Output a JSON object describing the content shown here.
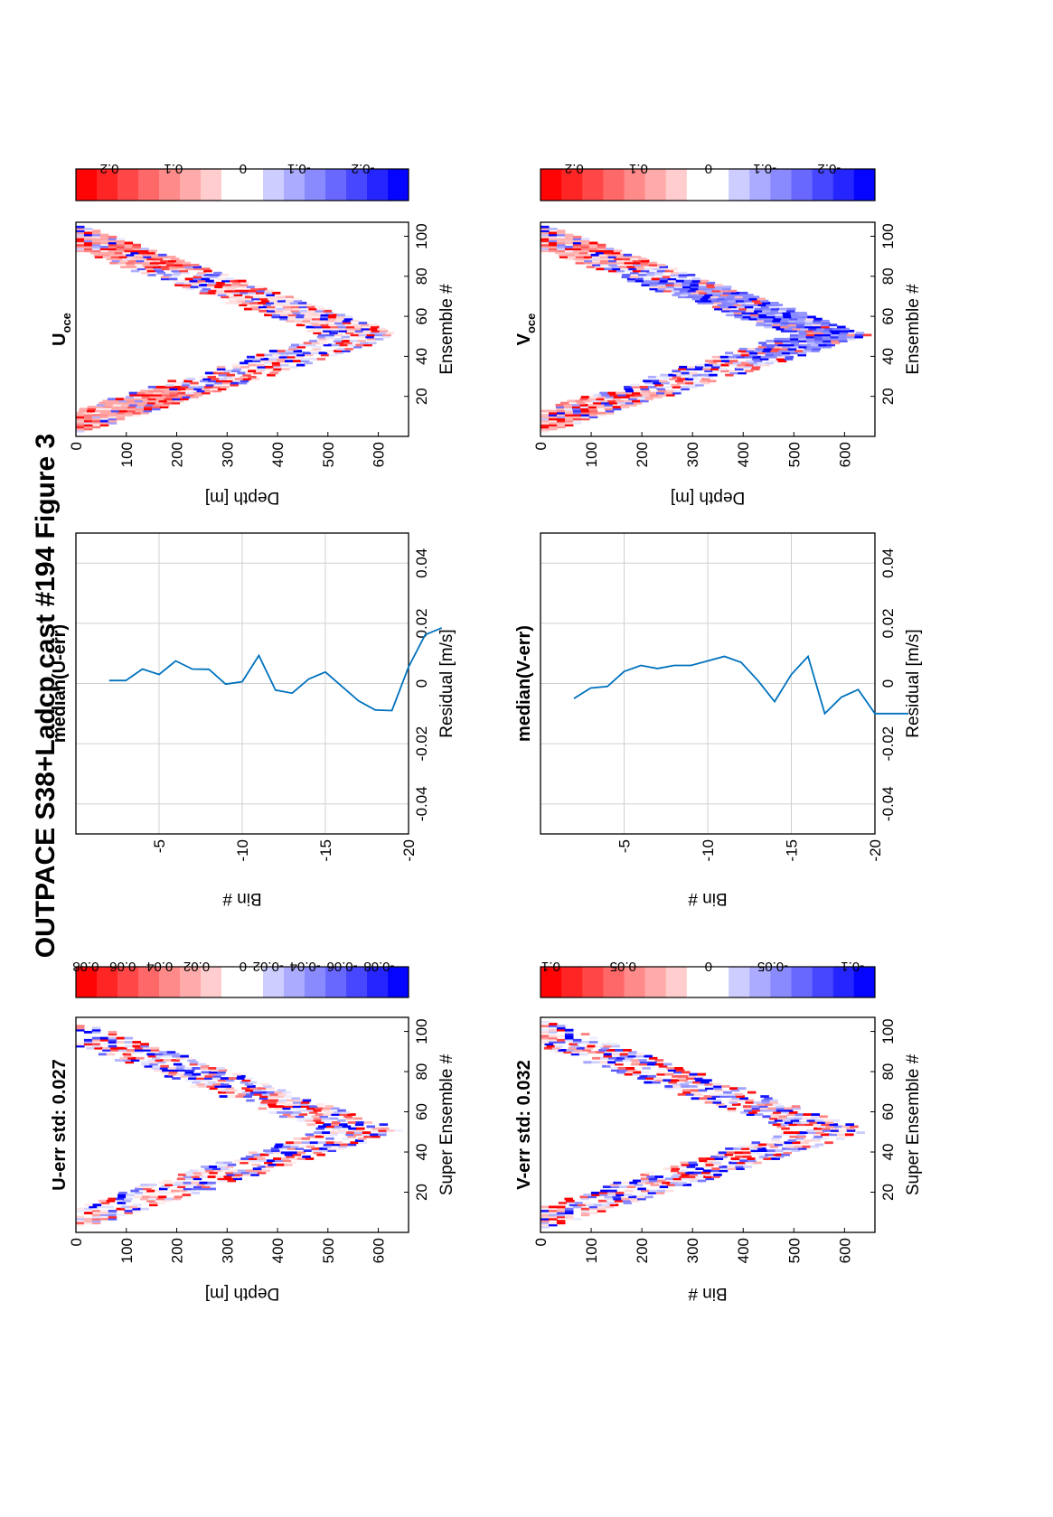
{
  "figure": {
    "title": "OUTPACE S38+Ladcp cast #194  Figure 3",
    "orientation": "rotated-90-ccw"
  },
  "colors": {
    "line": "#0072BD",
    "grid": "#d0d0d0",
    "red": "#ff0000",
    "blue": "#0000ff"
  },
  "chart_data": [
    {
      "type": "heatmap",
      "title": "U-err std: 0.027",
      "xlabel": "Super Ensemble #",
      "ylabel": "Depth [m]",
      "xlim": [
        1,
        105
      ],
      "ylim": [
        0,
        660
      ],
      "xticks": [
        "20",
        "40",
        "60",
        "80",
        "100"
      ],
      "yticks": [
        "0",
        "100",
        "200",
        "300",
        "400",
        "500",
        "600"
      ],
      "profile": "V-shaped cast: descent to ~640 m at ensemble ~50, then ascent",
      "colorbar": {
        "ticks": [
          "0.08",
          "0.06",
          "0.04",
          "0.02",
          "0",
          "-0.02",
          "-0.04",
          "-0.06",
          "-0.08"
        ],
        "range": [
          -0.09,
          0.09
        ],
        "colormap": "red-white-blue"
      }
    },
    {
      "type": "line",
      "title": "median(U-err)",
      "xlabel": "Residual [m/s]",
      "ylabel": "Bin #",
      "xlim": [
        -0.05,
        0.05
      ],
      "ylim": [
        -20,
        0
      ],
      "xticks": [
        "-0.04",
        "-0.02",
        "0",
        "0.02",
        "0.04"
      ],
      "yticks": [
        "-5",
        "-10",
        "-15",
        "-20"
      ],
      "grid": true,
      "series": [
        {
          "bins": [
            -2,
            -3,
            -4,
            -5,
            -6,
            -7,
            -8,
            -9,
            -10,
            -11,
            -12,
            -13,
            -14,
            -15,
            -16,
            -17,
            -18,
            -19,
            -20,
            -21,
            -22
          ],
          "values": [
            0.001,
            0.001,
            0.0048,
            0.003,
            0.0075,
            0.0048,
            0.0047,
            -0.0002,
            0.0006,
            0.0093,
            -0.0022,
            -0.0032,
            0.0015,
            0.0038,
            -0.001,
            -0.0058,
            -0.0088,
            -0.009,
            0.0055,
            0.0162,
            0.0185
          ]
        }
      ]
    },
    {
      "type": "heatmap",
      "title": "U",
      "title_sub": "oce",
      "xlabel": "Ensemble #",
      "ylabel": "Depth [m]",
      "xlim": [
        1,
        105
      ],
      "ylim": [
        0,
        660
      ],
      "xticks": [
        "20",
        "40",
        "60",
        "80",
        "100"
      ],
      "yticks": [
        "0",
        "100",
        "200",
        "300",
        "400",
        "500",
        "600"
      ],
      "colorbar": {
        "ticks": [
          "0.2",
          "0.1",
          "0",
          "-0.1",
          "-0.2"
        ],
        "range": [
          -0.26,
          0.26
        ],
        "colormap": "red-white-blue"
      }
    },
    {
      "type": "heatmap",
      "title": "V-err std: 0.032",
      "xlabel": "Super Ensemble #",
      "ylabel": "Bin #",
      "xlim": [
        1,
        105
      ],
      "ylim": [
        0,
        660
      ],
      "xticks": [
        "20",
        "40",
        "60",
        "80",
        "100"
      ],
      "yticks": [
        "0",
        "100",
        "200",
        "300",
        "400",
        "500",
        "600"
      ],
      "colorbar": {
        "ticks": [
          "0.1",
          "0.05",
          "0",
          "-0.05",
          "-0.1"
        ],
        "range": [
          -0.11,
          0.11
        ],
        "colormap": "red-white-blue"
      }
    },
    {
      "type": "line",
      "title": "median(V-err)",
      "xlabel": "Residual [m/s]",
      "ylabel": "Bin #",
      "xlim": [
        -0.05,
        0.05
      ],
      "ylim": [
        -20,
        0
      ],
      "xticks": [
        "-0.04",
        "-0.02",
        "0",
        "0.02",
        "0.04"
      ],
      "yticks": [
        "-5",
        "-10",
        "-15",
        "-20"
      ],
      "grid": true,
      "series": [
        {
          "bins": [
            -2,
            -3,
            -4,
            -5,
            -6,
            -7,
            -8,
            -9,
            -10,
            -11,
            -12,
            -13,
            -14,
            -15,
            -16,
            -17,
            -18,
            -19,
            -20,
            -21,
            -22
          ],
          "values": [
            -0.005,
            -0.0015,
            -0.001,
            0.004,
            0.006,
            0.005,
            0.006,
            0.006,
            0.0075,
            0.009,
            0.007,
            0.001,
            -0.006,
            0.003,
            0.009,
            -0.01,
            -0.0045,
            -0.002,
            -0.01,
            -0.01,
            -0.01
          ]
        }
      ]
    },
    {
      "type": "heatmap",
      "title": "V",
      "title_sub": "oce",
      "xlabel": "Ensemble #",
      "ylabel": "Depth [m]",
      "xlim": [
        1,
        105
      ],
      "ylim": [
        0,
        660
      ],
      "xticks": [
        "20",
        "40",
        "60",
        "80",
        "100"
      ],
      "yticks": [
        "0",
        "100",
        "200",
        "300",
        "400",
        "500",
        "600"
      ],
      "colorbar": {
        "ticks": [
          "0.2",
          "0.1",
          "0",
          "-0.1",
          "-0.2"
        ],
        "range": [
          -0.26,
          0.26
        ],
        "colormap": "red-white-blue"
      }
    }
  ]
}
